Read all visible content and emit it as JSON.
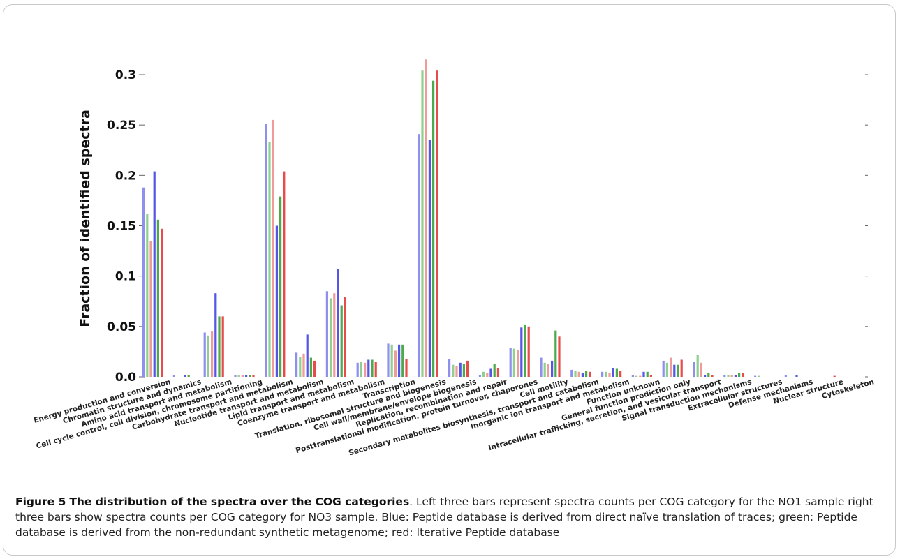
{
  "chart_data": {
    "type": "bar",
    "title": "",
    "xlabel": "",
    "ylabel": "Fraction of identified spectra",
    "ylim": [
      0,
      0.32
    ],
    "yticks": [
      "0.0",
      "0.05",
      "0.1",
      "0.15",
      "0.2",
      "0.25",
      "0.3"
    ],
    "grid": false,
    "legend": "none",
    "categories": [
      "Energy production and conversion",
      "Chromatin structure and dynamics",
      "Amino acid transport and metabolism",
      "Cell cycle control, cell division, chromosome partitioning",
      "Carbohydrate transport and metabolism",
      "Nucleotide transport and metabolism",
      "Lipid transport and metabolism",
      "Coenzyme transport and metabolism",
      "Transcription",
      "Translation, ribosomal structure and biogenesis",
      "Cell wall/membrane/envelope biogenesis",
      "Replication, recombination and repair",
      "Posttranslational modification, protein turnover, chaperones",
      "Cell motility",
      "Secondary metabolites biosynthesis, transport and catabolism",
      "Inorganic ion transport and metabolism",
      "Function unknown",
      "General function prediction only",
      "Intracellular trafficking, secretion, and vesicular transport",
      "Signal transduction mechanisms",
      "Extracellular structures",
      "Defense mechanisms",
      "Nuclear structure",
      "Cytoskeleton"
    ],
    "colors": [
      "#8f8ff0",
      "#8ed18e",
      "#f09a9a",
      "#5555e6",
      "#4caa4c",
      "#e64c4c"
    ],
    "series": [
      {
        "values": [
          0.188,
          0.002,
          0.044,
          0.002,
          0.251,
          0.024,
          0.085,
          0.014,
          0.033,
          0.241,
          0.018,
          0.002,
          0.029,
          0.019,
          0.007,
          0.005,
          0.002,
          0.016,
          0.015,
          0.002,
          0.001,
          0.002,
          0.0,
          0.0
        ]
      },
      {
        "values": [
          0.162,
          0.0,
          0.041,
          0.002,
          0.233,
          0.02,
          0.078,
          0.015,
          0.032,
          0.304,
          0.012,
          0.005,
          0.028,
          0.014,
          0.006,
          0.005,
          0.001,
          0.014,
          0.022,
          0.002,
          0.001,
          0.0,
          0.0,
          0.0
        ]
      },
      {
        "values": [
          0.135,
          0.0,
          0.045,
          0.002,
          0.255,
          0.023,
          0.083,
          0.014,
          0.026,
          0.315,
          0.011,
          0.004,
          0.027,
          0.013,
          0.005,
          0.004,
          0.001,
          0.019,
          0.014,
          0.002,
          0.0,
          0.0,
          0.0,
          0.0
        ]
      },
      {
        "values": [
          0.204,
          0.002,
          0.083,
          0.002,
          0.15,
          0.042,
          0.107,
          0.017,
          0.032,
          0.235,
          0.014,
          0.008,
          0.049,
          0.016,
          0.004,
          0.009,
          0.005,
          0.012,
          0.002,
          0.002,
          0.0,
          0.002,
          0.0,
          0.0
        ]
      },
      {
        "values": [
          0.156,
          0.002,
          0.06,
          0.002,
          0.179,
          0.019,
          0.071,
          0.017,
          0.032,
          0.294,
          0.013,
          0.013,
          0.052,
          0.046,
          0.006,
          0.008,
          0.005,
          0.012,
          0.004,
          0.004,
          0.0,
          0.0,
          0.0,
          0.0
        ]
      },
      {
        "values": [
          0.147,
          0.0,
          0.06,
          0.002,
          0.204,
          0.016,
          0.079,
          0.015,
          0.018,
          0.304,
          0.016,
          0.009,
          0.05,
          0.04,
          0.005,
          0.006,
          0.002,
          0.017,
          0.002,
          0.004,
          0.0,
          0.0,
          0.001,
          0.0
        ]
      }
    ]
  },
  "caption": {
    "figure_label": "Figure 5",
    "figure_title": "The distribution of the spectra over the COG categories",
    "text": ". Left three bars represent spectra counts per COG category for the NO1 sample right three bars show spectra counts per COG category for NO3 sample. Blue: Peptide database is derived from direct naïve translation of traces; green: Peptide database is derived from the non-redundant synthetic metagenome; red: Iterative Peptide database"
  }
}
